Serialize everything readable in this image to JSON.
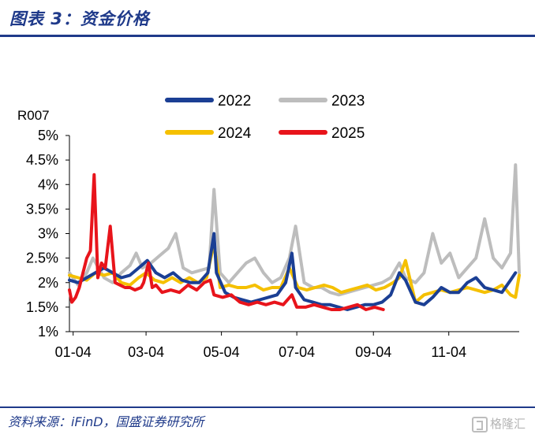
{
  "header": {
    "title": "图表 3：资金价格",
    "source": "资料来源：iFinD，国盛证券研究所",
    "watermark": "格隆汇"
  },
  "chart_data": {
    "type": "line",
    "title": "",
    "ylabel": "R007",
    "xlabel": "",
    "ylim": [
      1,
      5
    ],
    "yticks": [
      1,
      1.5,
      2,
      2.5,
      3,
      3.5,
      4,
      4.5,
      5
    ],
    "ytick_labels": [
      "1%",
      "1.5%",
      "2%",
      "2.5%",
      "3%",
      "3.5%",
      "4%",
      "4.5%",
      "5%"
    ],
    "x_domain": [
      "01-01",
      "12-31"
    ],
    "xticks": [
      "01-04",
      "03-04",
      "05-04",
      "07-04",
      "09-04",
      "11-04"
    ],
    "legend_position": "top-center",
    "grid": false,
    "series": [
      {
        "name": "2022",
        "color": "#1b3f94",
        "points": [
          [
            "01-01",
            2.05
          ],
          [
            "01-08",
            2.0
          ],
          [
            "01-15",
            2.1
          ],
          [
            "01-22",
            2.2
          ],
          [
            "01-29",
            2.3
          ],
          [
            "02-05",
            2.2
          ],
          [
            "02-12",
            2.1
          ],
          [
            "02-19",
            2.15
          ],
          [
            "02-26",
            2.3
          ],
          [
            "03-05",
            2.45
          ],
          [
            "03-12",
            2.2
          ],
          [
            "03-19",
            2.1
          ],
          [
            "03-26",
            2.2
          ],
          [
            "04-02",
            2.05
          ],
          [
            "04-09",
            2.0
          ],
          [
            "04-16",
            2.0
          ],
          [
            "04-23",
            2.2
          ],
          [
            "04-28",
            3.0
          ],
          [
            "04-30",
            2.2
          ],
          [
            "05-07",
            1.8
          ],
          [
            "05-14",
            1.7
          ],
          [
            "05-21",
            1.65
          ],
          [
            "05-28",
            1.6
          ],
          [
            "06-04",
            1.65
          ],
          [
            "06-11",
            1.7
          ],
          [
            "06-18",
            1.75
          ],
          [
            "06-25",
            2.0
          ],
          [
            "06-30",
            2.6
          ],
          [
            "07-03",
            1.9
          ],
          [
            "07-10",
            1.65
          ],
          [
            "07-17",
            1.6
          ],
          [
            "07-24",
            1.55
          ],
          [
            "07-31",
            1.55
          ],
          [
            "08-07",
            1.5
          ],
          [
            "08-14",
            1.45
          ],
          [
            "08-21",
            1.5
          ],
          [
            "08-28",
            1.55
          ],
          [
            "09-04",
            1.55
          ],
          [
            "09-11",
            1.6
          ],
          [
            "09-18",
            1.75
          ],
          [
            "09-25",
            2.2
          ],
          [
            "09-30",
            2.05
          ],
          [
            "10-08",
            1.6
          ],
          [
            "10-15",
            1.55
          ],
          [
            "10-22",
            1.7
          ],
          [
            "10-29",
            1.9
          ],
          [
            "11-05",
            1.8
          ],
          [
            "11-12",
            1.8
          ],
          [
            "11-19",
            2.0
          ],
          [
            "11-26",
            2.1
          ],
          [
            "12-03",
            1.9
          ],
          [
            "12-10",
            1.85
          ],
          [
            "12-17",
            1.8
          ],
          [
            "12-24",
            2.05
          ],
          [
            "12-28",
            2.2
          ]
        ]
      },
      {
        "name": "2023",
        "color": "#bdbdbd",
        "points": [
          [
            "01-01",
            2.2
          ],
          [
            "01-08",
            1.95
          ],
          [
            "01-15",
            2.2
          ],
          [
            "01-20",
            2.5
          ],
          [
            "01-29",
            2.1
          ],
          [
            "02-05",
            2.0
          ],
          [
            "02-12",
            2.2
          ],
          [
            "02-19",
            2.35
          ],
          [
            "02-24",
            2.6
          ],
          [
            "03-01",
            2.3
          ],
          [
            "03-08",
            2.4
          ],
          [
            "03-15",
            2.55
          ],
          [
            "03-22",
            2.7
          ],
          [
            "03-28",
            3.0
          ],
          [
            "04-03",
            2.3
          ],
          [
            "04-10",
            2.2
          ],
          [
            "04-17",
            2.25
          ],
          [
            "04-24",
            2.3
          ],
          [
            "04-28",
            3.9
          ],
          [
            "05-03",
            2.2
          ],
          [
            "05-10",
            2.0
          ],
          [
            "05-17",
            2.2
          ],
          [
            "05-24",
            2.4
          ],
          [
            "05-31",
            2.5
          ],
          [
            "06-07",
            2.2
          ],
          [
            "06-14",
            2.0
          ],
          [
            "06-21",
            2.1
          ],
          [
            "06-28",
            2.5
          ],
          [
            "07-03",
            3.15
          ],
          [
            "07-10",
            2.0
          ],
          [
            "07-17",
            1.9
          ],
          [
            "07-24",
            1.9
          ],
          [
            "07-31",
            1.8
          ],
          [
            "08-07",
            1.75
          ],
          [
            "08-14",
            1.8
          ],
          [
            "08-21",
            1.85
          ],
          [
            "08-28",
            1.9
          ],
          [
            "09-04",
            1.95
          ],
          [
            "09-11",
            2.0
          ],
          [
            "09-18",
            2.1
          ],
          [
            "09-25",
            2.4
          ],
          [
            "09-30",
            2.1
          ],
          [
            "10-08",
            2.0
          ],
          [
            "10-15",
            2.2
          ],
          [
            "10-22",
            3.0
          ],
          [
            "10-29",
            2.4
          ],
          [
            "11-05",
            2.6
          ],
          [
            "11-12",
            2.1
          ],
          [
            "11-19",
            2.3
          ],
          [
            "11-26",
            2.5
          ],
          [
            "12-03",
            3.3
          ],
          [
            "12-10",
            2.5
          ],
          [
            "12-17",
            2.3
          ],
          [
            "12-24",
            2.6
          ],
          [
            "12-28",
            4.4
          ],
          [
            "12-31",
            2.2
          ]
        ]
      },
      {
        "name": "2024",
        "color": "#f5c000",
        "points": [
          [
            "01-01",
            2.15
          ],
          [
            "01-08",
            2.1
          ],
          [
            "01-15",
            2.05
          ],
          [
            "01-22",
            2.2
          ],
          [
            "01-29",
            2.15
          ],
          [
            "02-05",
            2.2
          ],
          [
            "02-12",
            2.0
          ],
          [
            "02-19",
            1.95
          ],
          [
            "02-26",
            2.1
          ],
          [
            "03-04",
            2.2
          ],
          [
            "03-11",
            2.05
          ],
          [
            "03-18",
            2.0
          ],
          [
            "03-25",
            2.1
          ],
          [
            "04-01",
            2.0
          ],
          [
            "04-08",
            2.1
          ],
          [
            "04-15",
            2.0
          ],
          [
            "04-22",
            2.1
          ],
          [
            "04-28",
            2.8
          ],
          [
            "05-03",
            1.9
          ],
          [
            "05-10",
            1.95
          ],
          [
            "05-17",
            1.9
          ],
          [
            "05-24",
            1.9
          ],
          [
            "05-31",
            1.95
          ],
          [
            "06-07",
            1.85
          ],
          [
            "06-14",
            1.9
          ],
          [
            "06-21",
            1.9
          ],
          [
            "06-28",
            2.3
          ],
          [
            "07-05",
            1.9
          ],
          [
            "07-12",
            1.85
          ],
          [
            "07-19",
            1.9
          ],
          [
            "07-26",
            1.95
          ],
          [
            "08-02",
            1.9
          ],
          [
            "08-09",
            1.8
          ],
          [
            "08-16",
            1.85
          ],
          [
            "08-23",
            1.9
          ],
          [
            "08-30",
            1.95
          ],
          [
            "09-06",
            1.85
          ],
          [
            "09-13",
            1.9
          ],
          [
            "09-20",
            2.0
          ],
          [
            "09-25",
            2.1
          ],
          [
            "09-30",
            2.45
          ],
          [
            "10-08",
            1.6
          ],
          [
            "10-15",
            1.75
          ],
          [
            "10-22",
            1.8
          ],
          [
            "10-29",
            1.85
          ],
          [
            "11-05",
            1.8
          ],
          [
            "11-12",
            1.85
          ],
          [
            "11-19",
            1.9
          ],
          [
            "11-26",
            1.85
          ],
          [
            "12-03",
            1.8
          ],
          [
            "12-10",
            1.85
          ],
          [
            "12-17",
            1.95
          ],
          [
            "12-24",
            1.75
          ],
          [
            "12-28",
            1.7
          ],
          [
            "12-31",
            2.15
          ]
        ]
      },
      {
        "name": "2025",
        "color": "#e8141b",
        "points": [
          [
            "01-01",
            1.85
          ],
          [
            "01-03",
            1.6
          ],
          [
            "01-06",
            1.7
          ],
          [
            "01-09",
            1.9
          ],
          [
            "01-12",
            2.2
          ],
          [
            "01-15",
            2.5
          ],
          [
            "01-18",
            2.65
          ],
          [
            "01-21",
            4.2
          ],
          [
            "01-24",
            2.1
          ],
          [
            "01-27",
            2.4
          ],
          [
            "01-30",
            2.3
          ],
          [
            "02-03",
            3.15
          ],
          [
            "02-07",
            2.0
          ],
          [
            "02-11",
            1.95
          ],
          [
            "02-15",
            1.9
          ],
          [
            "02-19",
            1.9
          ],
          [
            "02-23",
            1.85
          ],
          [
            "02-28",
            1.9
          ],
          [
            "03-02",
            2.0
          ],
          [
            "03-06",
            2.4
          ],
          [
            "03-09",
            1.9
          ],
          [
            "03-12",
            1.95
          ],
          [
            "03-17",
            1.8
          ],
          [
            "03-24",
            1.85
          ],
          [
            "03-31",
            1.8
          ],
          [
            "04-07",
            1.95
          ],
          [
            "04-14",
            1.85
          ],
          [
            "04-20",
            2.0
          ],
          [
            "04-25",
            2.05
          ],
          [
            "04-28",
            1.75
          ],
          [
            "05-05",
            1.7
          ],
          [
            "05-12",
            1.75
          ],
          [
            "05-19",
            1.6
          ],
          [
            "05-26",
            1.55
          ],
          [
            "06-02",
            1.6
          ],
          [
            "06-09",
            1.55
          ],
          [
            "06-16",
            1.6
          ],
          [
            "06-23",
            1.55
          ],
          [
            "06-30",
            1.75
          ],
          [
            "07-04",
            1.5
          ],
          [
            "07-11",
            1.5
          ],
          [
            "07-18",
            1.55
          ],
          [
            "07-25",
            1.5
          ],
          [
            "08-01",
            1.45
          ],
          [
            "08-08",
            1.45
          ],
          [
            "08-15",
            1.5
          ],
          [
            "08-22",
            1.55
          ],
          [
            "08-29",
            1.45
          ],
          [
            "09-05",
            1.5
          ],
          [
            "09-12",
            1.45
          ]
        ]
      }
    ]
  }
}
